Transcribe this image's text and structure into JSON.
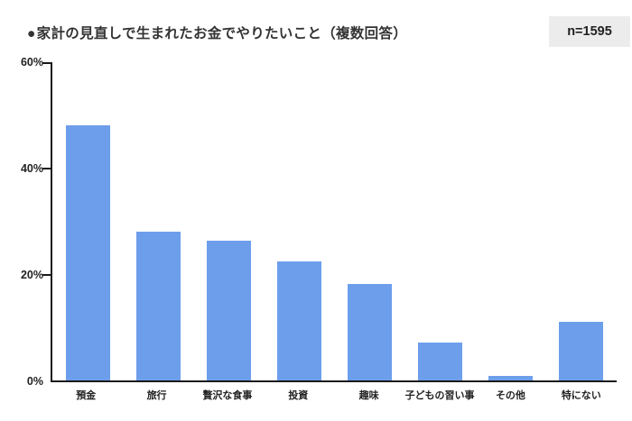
{
  "header": {
    "bullet": "●",
    "title": "家計の見直しで生まれたお金でやりたいこと（複数回答）",
    "sample_size": "n=1595"
  },
  "chart_data": {
    "type": "bar",
    "title": "家計の見直しで生まれたお金でやりたいこと（複数回答）",
    "sample_size": "n=1595",
    "categories": [
      "預金",
      "旅行",
      "贅沢な食事",
      "投資",
      "趣味",
      "子どもの習い事",
      "その他",
      "特にない"
    ],
    "values": [
      48.2,
      28.1,
      26.5,
      22.5,
      18.3,
      7.1,
      0.8,
      11.0
    ],
    "unit": "%",
    "xlabel": "",
    "ylabel": "",
    "ylim": [
      0,
      60
    ],
    "yticks": [
      {
        "label": "60%",
        "value": 60
      },
      {
        "label": "40%",
        "value": 40
      },
      {
        "label": "20%",
        "value": 20
      },
      {
        "label": "0%",
        "value": 0
      }
    ],
    "grid": false,
    "legend": false,
    "colors": {
      "bar": "#6d9eeb",
      "axis": "#1a1a1a",
      "text": "#222222",
      "badge_bg": "#ececec",
      "background": "#ffffff"
    }
  }
}
